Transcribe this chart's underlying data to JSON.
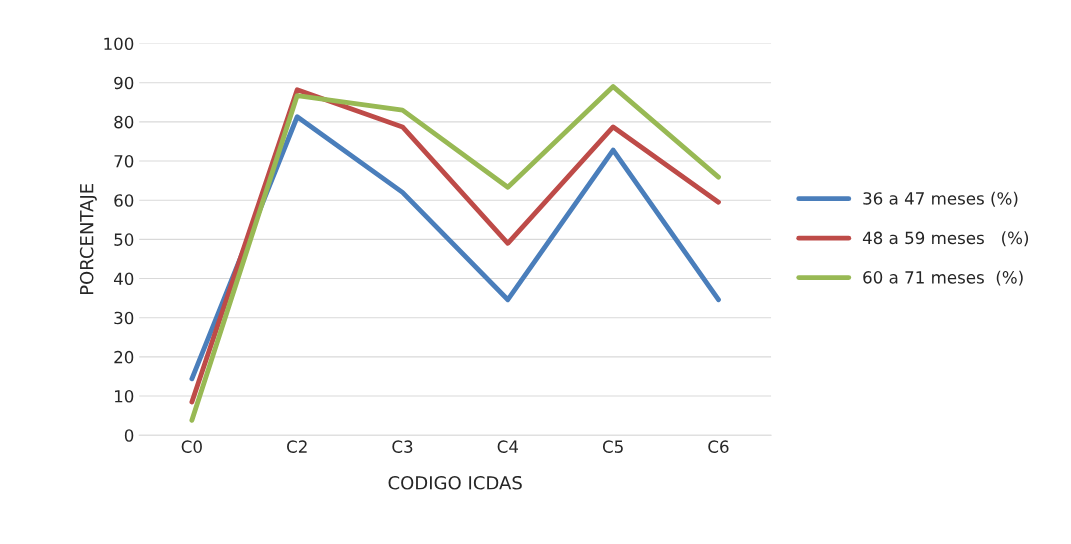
{
  "chart_data": {
    "type": "line",
    "xlabel": "CODIGO ICDAS",
    "ylabel": "PORCENTAJE",
    "categories": [
      "C0",
      "C2",
      "C3",
      "C4",
      "C5",
      "C6"
    ],
    "series": [
      {
        "name": "36 a 47 meses (%)",
        "color": "#4a7ebb",
        "values": [
          14.4,
          81.3,
          62,
          34.6,
          72.8,
          34.6
        ]
      },
      {
        "name": "48 a 59 meses   (%)",
        "color": "#be4b48",
        "values": [
          8.5,
          88.2,
          78.7,
          49,
          78.7,
          59.5
        ]
      },
      {
        "name": "60 a 71 meses  (%)",
        "color": "#98b954",
        "values": [
          3.8,
          86.7,
          83,
          63.3,
          89,
          65.9
        ]
      }
    ],
    "ylim": [
      0,
      100
    ],
    "yticks": [
      0,
      10,
      20,
      30,
      40,
      50,
      60,
      70,
      80,
      90,
      100
    ],
    "grid": "y",
    "legend": "right",
    "marker": "none",
    "line_style": "solid"
  }
}
